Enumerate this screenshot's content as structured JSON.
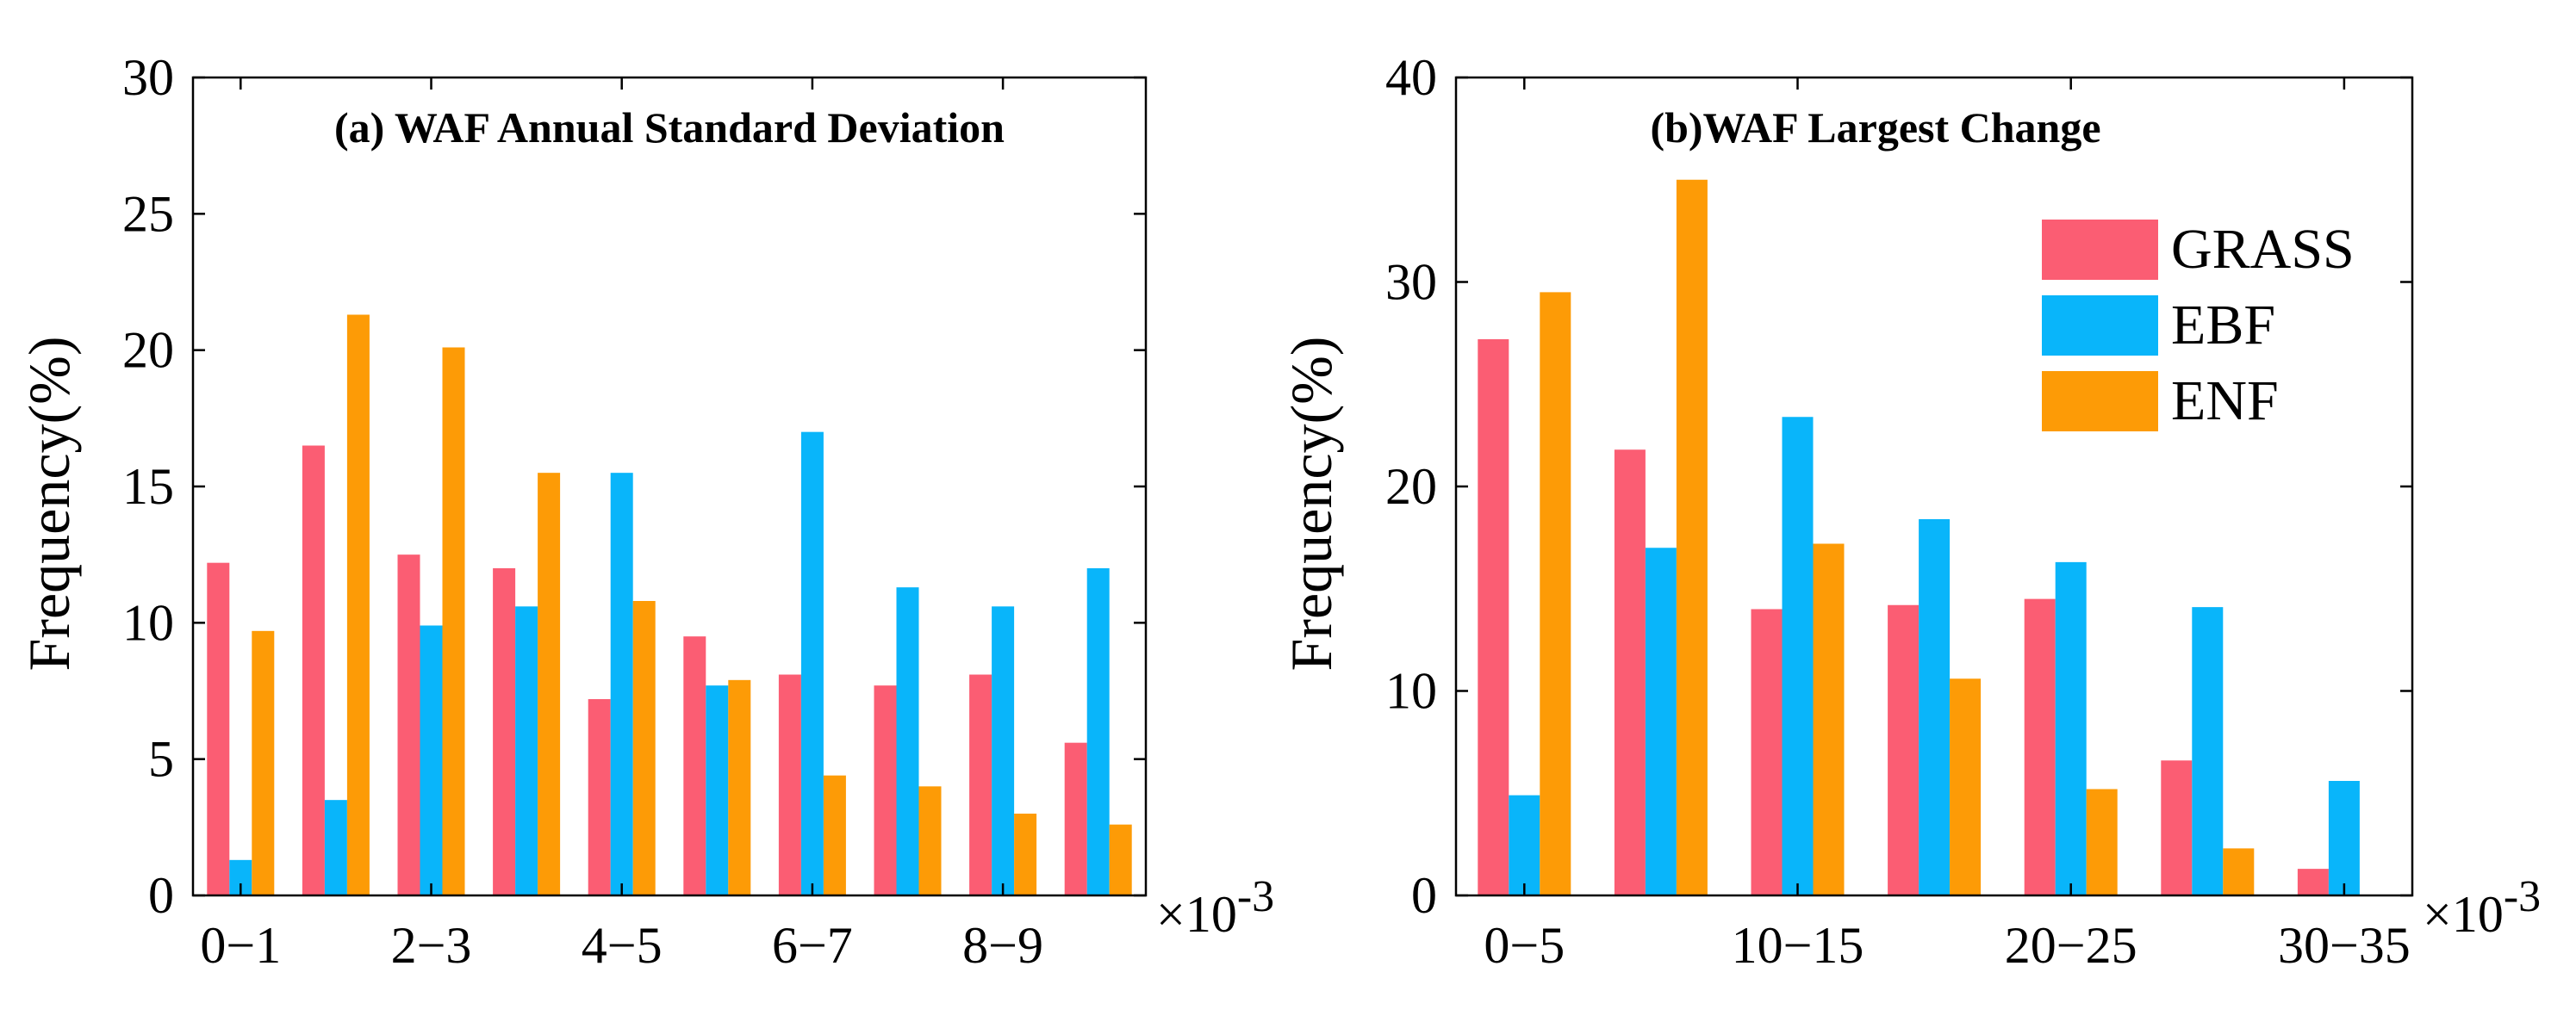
{
  "colors": {
    "GRASS": "#fb5d73",
    "EBF": "#09b5fa",
    "ENF": "#fd9b06"
  },
  "chart_data": [
    {
      "type": "bar",
      "title": "(a) WAF Annual Standard Deviation",
      "ylabel": "Frequency(%)",
      "xlabel": "",
      "ylim": [
        0,
        30
      ],
      "yticks": [
        "0",
        "5",
        "10",
        "15",
        "20",
        "25",
        "30"
      ],
      "ytick_values": [
        0,
        5,
        10,
        15,
        20,
        25,
        30
      ],
      "xtick_labels": [
        "0−1",
        "2−3",
        "4−5",
        "6−7",
        "8−9"
      ],
      "xtick_groups": [
        0,
        2,
        4,
        6,
        8
      ],
      "x_multiplier_base": "×10",
      "x_multiplier_exp": "-3",
      "categories": [
        "0-1",
        "1-2",
        "2-3",
        "3-4",
        "4-5",
        "5-6",
        "6-7",
        "7-8",
        "8-9",
        "9-10"
      ],
      "series": [
        {
          "name": "GRASS",
          "values": [
            12.2,
            16.5,
            12.5,
            12.0,
            7.2,
            9.5,
            8.1,
            7.7,
            8.1,
            5.6
          ]
        },
        {
          "name": "EBF",
          "values": [
            1.3,
            3.5,
            9.9,
            10.6,
            15.5,
            7.7,
            17.0,
            11.3,
            10.6,
            12.0
          ]
        },
        {
          "name": "ENF",
          "values": [
            9.7,
            21.3,
            20.1,
            15.5,
            10.8,
            7.9,
            4.4,
            4.0,
            3.0,
            2.6
          ]
        }
      ]
    },
    {
      "type": "bar",
      "title": "(b)WAF Largest Change",
      "ylabel": "Frequency(%)",
      "xlabel": "",
      "ylim": [
        0,
        40
      ],
      "yticks": [
        "0",
        "10",
        "20",
        "30",
        "40"
      ],
      "ytick_values": [
        0,
        10,
        20,
        30,
        40
      ],
      "xtick_labels": [
        "0−5",
        "10−15",
        "20−25",
        "30−35"
      ],
      "xtick_groups": [
        0,
        2,
        4,
        6
      ],
      "x_multiplier_base": "×10",
      "x_multiplier_exp": "-3",
      "categories": [
        "0-5",
        "5-10",
        "10-15",
        "15-20",
        "20-25",
        "25-30",
        "30-35"
      ],
      "series": [
        {
          "name": "GRASS",
          "values": [
            27.2,
            21.8,
            14.0,
            14.2,
            14.5,
            6.6,
            1.3
          ]
        },
        {
          "name": "EBF",
          "values": [
            4.9,
            17.0,
            23.4,
            18.4,
            16.3,
            14.1,
            5.6
          ]
        },
        {
          "name": "ENF",
          "values": [
            29.5,
            35.0,
            17.2,
            10.6,
            5.2,
            2.3,
            0.0
          ]
        }
      ],
      "legend": [
        "GRASS",
        "EBF",
        "ENF"
      ],
      "legend_position": "top-right"
    }
  ]
}
